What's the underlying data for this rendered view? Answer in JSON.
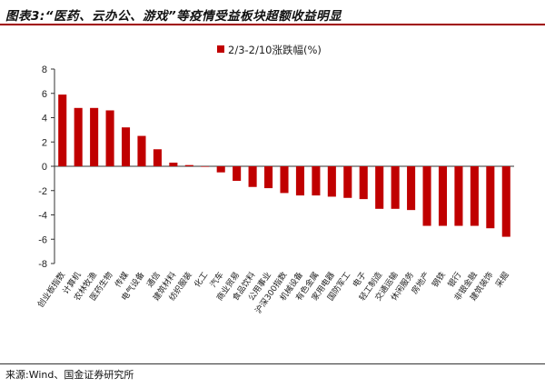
{
  "title": "图表3:“医药、云办公、游戏”等疫情受益板块超额收益明显",
  "source": "来源:Wind、国金证券研究所",
  "colors": {
    "bar": "#c00000",
    "axis": "#333333",
    "rule": "#a00000"
  },
  "chart_data": {
    "type": "bar",
    "title": "",
    "xlabel": "",
    "ylabel": "",
    "ylim": [
      -8,
      8
    ],
    "yticks": [
      -8,
      -6,
      -4,
      -2,
      0,
      2,
      4,
      6,
      8
    ],
    "grid": false,
    "legend_position": "top-center",
    "categories": [
      "创业板指数",
      "计算机",
      "农林牧渔",
      "医药生物",
      "传媒",
      "电气设备",
      "通信",
      "建筑材料",
      "纺织服装",
      "化工",
      "汽车",
      "商业贸易",
      "食品饮料",
      "公用事业",
      "沪深300指数",
      "机械设备",
      "有色金属",
      "家用电器",
      "国防军工",
      "电子",
      "轻工制造",
      "交通运输",
      "休闲服务",
      "房地产",
      "钢铁",
      "银行",
      "非银金融",
      "建筑装饰",
      "采掘"
    ],
    "series": [
      {
        "name": "2/3-2/10涨跌幅(%)",
        "values": [
          5.9,
          4.8,
          4.8,
          4.6,
          3.2,
          2.5,
          1.4,
          0.3,
          0.1,
          0.0,
          -0.5,
          -1.2,
          -1.7,
          -1.8,
          -2.2,
          -2.4,
          -2.4,
          -2.5,
          -2.6,
          -2.7,
          -3.5,
          -3.5,
          -3.6,
          -4.9,
          -4.9,
          -4.9,
          -4.9,
          -5.1,
          -5.8
        ]
      }
    ]
  }
}
